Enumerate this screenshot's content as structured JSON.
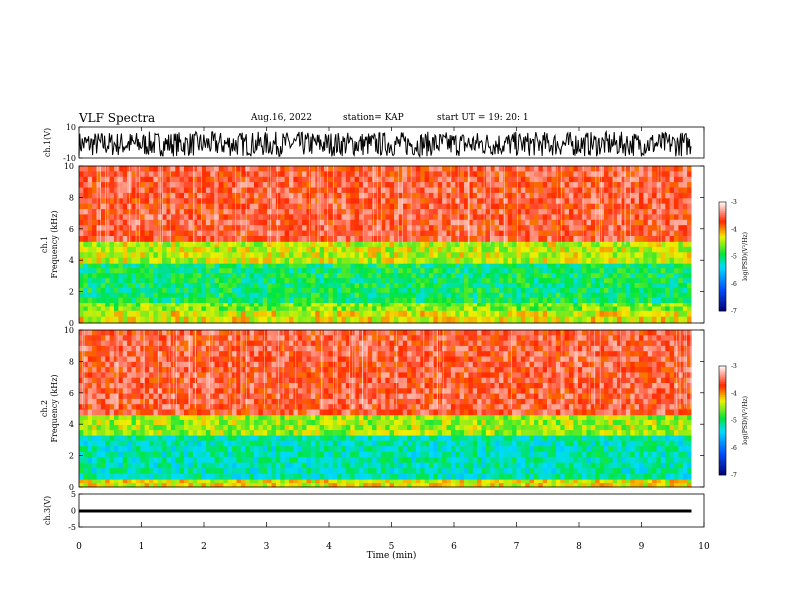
{
  "header": {
    "title": "VLF Spectra",
    "date": "Aug.16, 2022",
    "station": "station= KAP",
    "start": "start  UT  =    19: 20: 1"
  },
  "chart_data": [
    {
      "type": "line",
      "panel": "waveform-ch1",
      "ylabel": "ch.1(V)",
      "ylim": [
        -10,
        10
      ],
      "y_ticks": [
        "10",
        "-10"
      ],
      "xlim": [
        0,
        10
      ],
      "approx_amplitude": [
        -9,
        7
      ],
      "color": "#000000"
    },
    {
      "type": "heatmap",
      "panel": "spectrogram-ch1",
      "ylabel": [
        "ch.1",
        "Frequency  (kHz)"
      ],
      "ylim": [
        0,
        10
      ],
      "y_ticks": [
        "0",
        "2",
        "4",
        "6",
        "8",
        "10"
      ],
      "xlim": [
        0,
        9.8
      ],
      "bands_kHz": [
        {
          "from": 0,
          "to": 0.8,
          "log_psd": -4.3
        },
        {
          "from": 0.8,
          "to": 1.3,
          "log_psd": -4.6
        },
        {
          "from": 1.3,
          "to": 3.8,
          "log_psd": -5.0
        },
        {
          "from": 3.8,
          "to": 5.2,
          "log_psd": -4.4
        },
        {
          "from": 5.2,
          "to": 10,
          "log_psd": -3.6
        }
      ],
      "colorbar": {
        "label": "log(PSD)(V²/Hz)",
        "range": [
          -7,
          -3
        ],
        "ticks": [
          "-3",
          "-4",
          "-5",
          "-6",
          "-7"
        ]
      }
    },
    {
      "type": "heatmap",
      "panel": "spectrogram-ch2",
      "ylabel": [
        "ch.2",
        "Frequency  (kHz)"
      ],
      "ylim": [
        0,
        10
      ],
      "y_ticks": [
        "0",
        "2",
        "4",
        "6",
        "8",
        "10"
      ],
      "xlim": [
        0,
        9.8
      ],
      "bands_kHz": [
        {
          "from": 0,
          "to": 0.5,
          "log_psd": -4.3
        },
        {
          "from": 0.5,
          "to": 3.3,
          "log_psd": -5.2
        },
        {
          "from": 3.3,
          "to": 4.6,
          "log_psd": -4.5
        },
        {
          "from": 4.6,
          "to": 10,
          "log_psd": -3.6
        }
      ],
      "colorbar": {
        "label": "log(PSD)(V²/Hz)",
        "range": [
          -7,
          -3
        ],
        "ticks": [
          "-3",
          "-4",
          "-5",
          "-6",
          "-7"
        ]
      }
    },
    {
      "type": "line",
      "panel": "waveform-ch3",
      "ylabel": "ch.3(V)",
      "ylim": [
        -5,
        5
      ],
      "y_ticks": [
        "5",
        "0",
        "-5"
      ],
      "xlim": [
        0,
        10
      ],
      "approx_amplitude": [
        -0.6,
        0.3
      ],
      "color": "#000000"
    }
  ],
  "xaxis": {
    "label": "Time  (min)",
    "ticks": [
      "0",
      "1",
      "2",
      "3",
      "4",
      "5",
      "6",
      "7",
      "8",
      "9",
      "10"
    ]
  }
}
